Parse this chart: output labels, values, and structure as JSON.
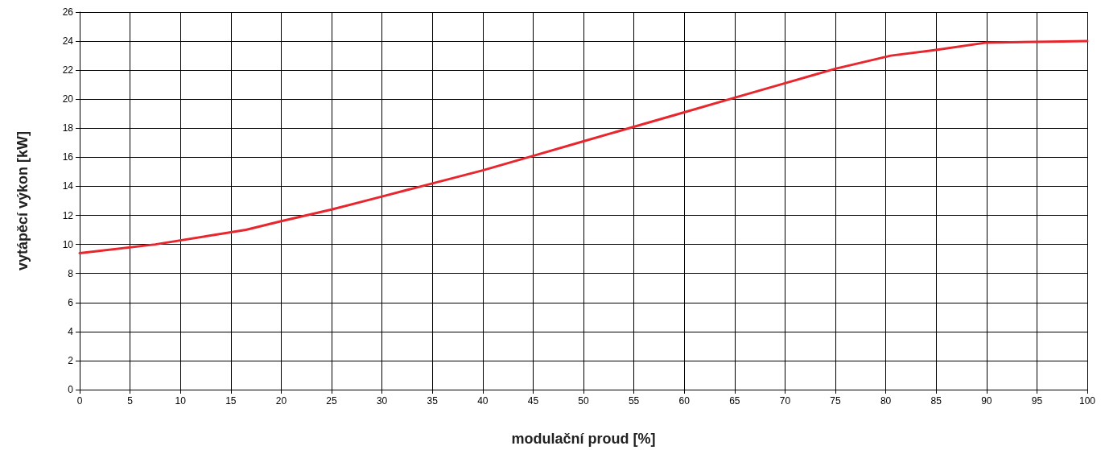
{
  "chart_data": {
    "type": "line",
    "xlabel": "modulační proud [%]",
    "ylabel": "vytápěcí výkon [kW]",
    "x": [
      0,
      7.5,
      16.5,
      20,
      25,
      30,
      35,
      40,
      45,
      50,
      55,
      60,
      65,
      70,
      75,
      80.5,
      85,
      90,
      95,
      100
    ],
    "series": [
      {
        "color": "#e8262d",
        "values": [
          9.4,
          10.0,
          11.0,
          11.6,
          12.4,
          13.3,
          14.2,
          15.1,
          16.1,
          17.1,
          18.1,
          19.1,
          20.1,
          21.1,
          22.1,
          23.0,
          23.4,
          23.9,
          23.95,
          24.0
        ]
      }
    ],
    "xlim": [
      0,
      100
    ],
    "xticks": [
      0,
      5,
      10,
      15,
      20,
      25,
      30,
      35,
      40,
      45,
      50,
      55,
      60,
      65,
      70,
      75,
      80,
      85,
      90,
      95,
      100
    ],
    "ylim": [
      0,
      26
    ],
    "yticks": [
      0,
      2,
      4,
      6,
      8,
      10,
      12,
      14,
      16,
      18,
      20,
      22,
      24,
      26
    ],
    "grid": true,
    "marker": "none",
    "line_style": "solid"
  }
}
